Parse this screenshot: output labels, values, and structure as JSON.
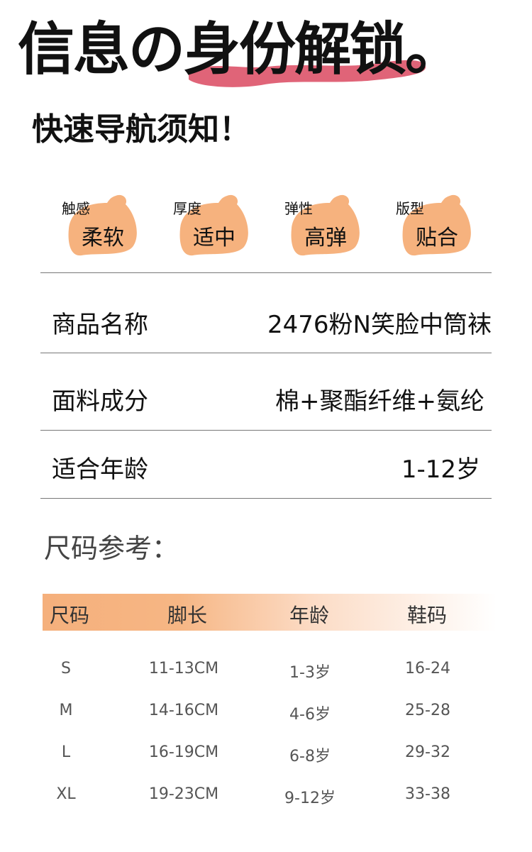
{
  "header": {
    "title": "信息の身份解锁。",
    "subtitle": "快速导航须知！",
    "highlight_color": "#e06478"
  },
  "badges": [
    {
      "label": "触感",
      "value": "柔软"
    },
    {
      "label": "厚度",
      "value": "适中"
    },
    {
      "label": "弹性",
      "value": "高弹"
    },
    {
      "label": "版型",
      "value": "贴合"
    }
  ],
  "badge_color": "#f6b27e",
  "details": [
    {
      "label": "商品名称",
      "value": "2476粉N笑脸中筒袜"
    },
    {
      "label": "面料成分",
      "value": "棉+聚酯纤维+氨纶"
    },
    {
      "label": "适合年龄",
      "value": "1-12岁"
    }
  ],
  "size_chart": {
    "heading": "尺码参考：",
    "columns": [
      "尺码",
      "脚长",
      "年龄",
      "鞋码"
    ],
    "rows": [
      [
        "S",
        "11-13CM",
        "1-3岁",
        "16-24"
      ],
      [
        "M",
        "14-16CM",
        "4-6岁",
        "25-28"
      ],
      [
        "L",
        "16-19CM",
        "6-8岁",
        "29-32"
      ],
      [
        "XL",
        "19-23CM",
        "9-12岁",
        "33-38"
      ]
    ]
  }
}
